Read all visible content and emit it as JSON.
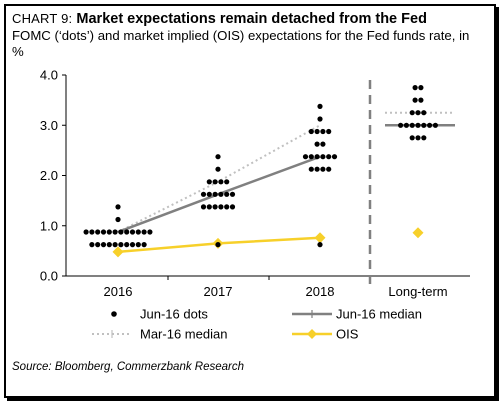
{
  "header": {
    "chart_prefix": "Chart 9:",
    "title": "Market expectations remain detached from the Fed",
    "subtitle": "FOMC (‘dots’) and market implied (OIS) expectations for the Fed funds rate, in %"
  },
  "source": "Source: Bloomberg, Commerzbank Research",
  "colors": {
    "dots": "#000000",
    "jun_median": "#808080",
    "mar_median": "#c0c0c0",
    "ois": "#f7d02a",
    "divider": "#808080",
    "axis": "#000000"
  },
  "chart_data": {
    "type": "scatter",
    "title": "Market expectations remain detached from the Fed",
    "categories": [
      "2016",
      "2017",
      "2018",
      "Long-term"
    ],
    "yticks": [
      "0.0",
      "1.0",
      "2.0",
      "3.0",
      "4.0"
    ],
    "ylim": [
      0,
      4
    ],
    "grid": false,
    "legend_position": "bottom",
    "series": [
      {
        "name": "Jun-16 dots",
        "type": "dots",
        "points": {
          "2016": [
            1.375,
            1.125,
            0.875,
            0.875,
            0.875,
            0.875,
            0.875,
            0.875,
            0.875,
            0.875,
            0.875,
            0.875,
            0.875,
            0.875,
            0.625,
            0.625,
            0.625,
            0.625,
            0.625,
            0.625,
            0.625,
            0.625,
            0.625,
            0.625
          ],
          "2017": [
            2.375,
            2.125,
            1.875,
            1.875,
            1.875,
            1.875,
            1.625,
            1.625,
            1.625,
            1.625,
            1.625,
            1.625,
            1.375,
            1.375,
            1.375,
            1.375,
            1.375,
            1.375,
            0.625
          ],
          "2018": [
            3.375,
            3.125,
            2.875,
            2.875,
            2.875,
            2.875,
            2.625,
            2.625,
            2.375,
            2.375,
            2.375,
            2.375,
            2.375,
            2.375,
            2.125,
            2.125,
            2.125,
            2.125,
            0.625
          ],
          "Long-term": [
            3.75,
            3.75,
            3.5,
            3.5,
            3.25,
            3.25,
            3.25,
            3.0,
            3.0,
            3.0,
            3.0,
            3.0,
            3.0,
            3.0,
            2.75,
            2.75,
            2.75
          ]
        }
      },
      {
        "name": "Jun-16 median",
        "type": "line",
        "values": {
          "2016": 0.875,
          "2017": 1.625,
          "2018": 2.375,
          "Long-term": 3.0
        }
      },
      {
        "name": "Mar-16 median",
        "type": "line-dotted",
        "values": {
          "2016": 0.875,
          "2017": 1.875,
          "2018": 3.0,
          "Long-term": 3.25
        }
      },
      {
        "name": "OIS",
        "type": "line-markers",
        "values": {
          "2016": 0.48,
          "2017": 0.65,
          "2018": 0.76,
          "Long-term": 0.86
        }
      }
    ],
    "legend": [
      {
        "label": "Jun-16 dots",
        "style": "dot"
      },
      {
        "label": "Jun-16 median",
        "style": "solid"
      },
      {
        "label": "Mar-16 median",
        "style": "dotted"
      },
      {
        "label": "OIS",
        "style": "diamond"
      }
    ],
    "divider_before": "Long-term"
  }
}
